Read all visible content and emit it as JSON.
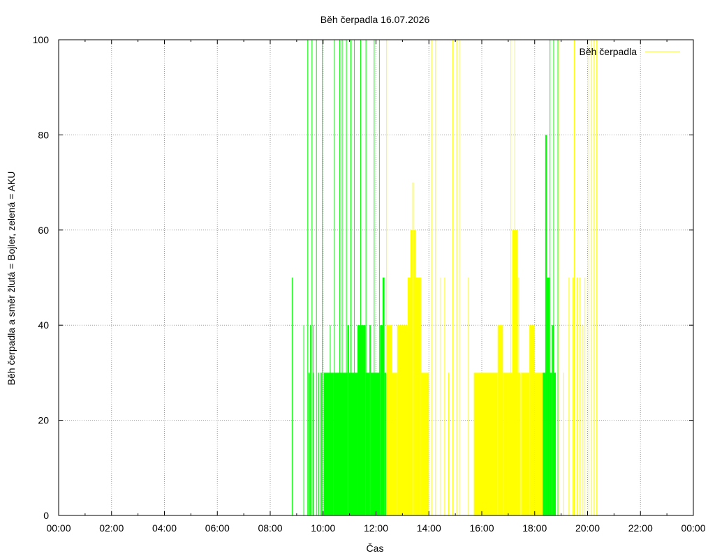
{
  "chart_data": {
    "type": "bar",
    "title": "Běh čerpadla 16.07.2026",
    "xlabel": "Čas",
    "ylabel": "Běh čerpadla a směr žlutá = Bojler, zelená = AKU",
    "legend": {
      "label": "Běh čerpadla",
      "position": "top-right"
    },
    "xlim": [
      0,
      24
    ],
    "ylim": [
      0,
      100
    ],
    "x_ticks": [
      "00:00",
      "02:00",
      "04:00",
      "06:00",
      "08:00",
      "10:00",
      "12:00",
      "14:00",
      "16:00",
      "18:00",
      "20:00",
      "22:00",
      "00:00"
    ],
    "y_ticks": [
      "0",
      "20",
      "40",
      "60",
      "80",
      "100"
    ],
    "grid": true,
    "series": [
      {
        "name": "AKU",
        "color": "#00ff00",
        "spikes": [
          [
            8.83,
            50
          ],
          [
            9.27,
            40
          ],
          [
            9.42,
            100
          ],
          [
            9.52,
            40
          ],
          [
            9.58,
            100
          ],
          [
            9.65,
            40
          ],
          [
            9.75,
            100
          ],
          [
            9.97,
            100
          ],
          [
            10.27,
            40
          ],
          [
            10.43,
            100
          ],
          [
            10.63,
            100
          ],
          [
            10.72,
            100
          ],
          [
            10.88,
            100
          ],
          [
            11.05,
            100
          ],
          [
            11.18,
            100
          ],
          [
            11.42,
            100
          ],
          [
            11.62,
            100
          ],
          [
            11.93,
            100
          ],
          [
            12.13,
            100
          ],
          [
            18.58,
            100
          ],
          [
            18.72,
            100
          ],
          [
            18.88,
            100
          ]
        ],
        "blocks": [
          [
            9.45,
            9.49,
            30
          ],
          [
            9.62,
            9.66,
            30
          ],
          [
            9.8,
            9.84,
            30
          ],
          [
            9.9,
            9.95,
            30
          ],
          [
            10.02,
            10.4,
            30
          ],
          [
            10.4,
            10.92,
            30
          ],
          [
            10.92,
            10.98,
            40
          ],
          [
            10.98,
            11.3,
            30
          ],
          [
            11.3,
            11.6,
            40
          ],
          [
            11.6,
            11.75,
            30
          ],
          [
            11.75,
            11.8,
            40
          ],
          [
            11.8,
            12.15,
            30
          ],
          [
            12.15,
            12.25,
            40
          ],
          [
            12.25,
            12.32,
            50
          ],
          [
            12.32,
            12.38,
            30
          ],
          [
            18.3,
            18.4,
            30
          ],
          [
            18.4,
            18.46,
            80
          ],
          [
            18.46,
            18.56,
            50
          ],
          [
            18.56,
            18.65,
            30
          ],
          [
            18.65,
            18.72,
            40
          ],
          [
            18.72,
            18.8,
            30
          ]
        ]
      },
      {
        "name": "Bojler",
        "color": "#ffff00",
        "spikes": [
          [
            12.4,
            100
          ],
          [
            14.1,
            100
          ],
          [
            14.25,
            100
          ],
          [
            14.45,
            50
          ],
          [
            14.6,
            50
          ],
          [
            14.75,
            30
          ],
          [
            14.9,
            100
          ],
          [
            15.05,
            100
          ],
          [
            15.15,
            100
          ],
          [
            15.5,
            50
          ],
          [
            17.1,
            100
          ],
          [
            17.25,
            100
          ],
          [
            17.4,
            50
          ],
          [
            17.5,
            30
          ],
          [
            18.9,
            100
          ],
          [
            19.1,
            30
          ],
          [
            19.3,
            50
          ],
          [
            19.45,
            50
          ],
          [
            19.5,
            100
          ],
          [
            19.6,
            50
          ],
          [
            19.7,
            50
          ],
          [
            19.8,
            40
          ],
          [
            19.9,
            50
          ],
          [
            20.05,
            100
          ],
          [
            20.15,
            100
          ],
          [
            20.25,
            100
          ],
          [
            20.35,
            100
          ]
        ],
        "blocks": [
          [
            12.4,
            12.6,
            40
          ],
          [
            12.6,
            12.8,
            30
          ],
          [
            12.8,
            13.2,
            40
          ],
          [
            13.2,
            13.3,
            50
          ],
          [
            13.3,
            13.38,
            60
          ],
          [
            13.38,
            13.42,
            70
          ],
          [
            13.42,
            13.5,
            60
          ],
          [
            13.5,
            13.7,
            50
          ],
          [
            13.7,
            14.0,
            30
          ],
          [
            15.7,
            16.6,
            30
          ],
          [
            16.6,
            16.8,
            40
          ],
          [
            16.8,
            17.0,
            30
          ],
          [
            17.0,
            17.15,
            30
          ],
          [
            17.15,
            17.35,
            60
          ],
          [
            17.35,
            17.45,
            30
          ],
          [
            17.5,
            17.8,
            30
          ],
          [
            17.8,
            18.0,
            40
          ],
          [
            18.0,
            18.3,
            30
          ]
        ]
      }
    ]
  }
}
